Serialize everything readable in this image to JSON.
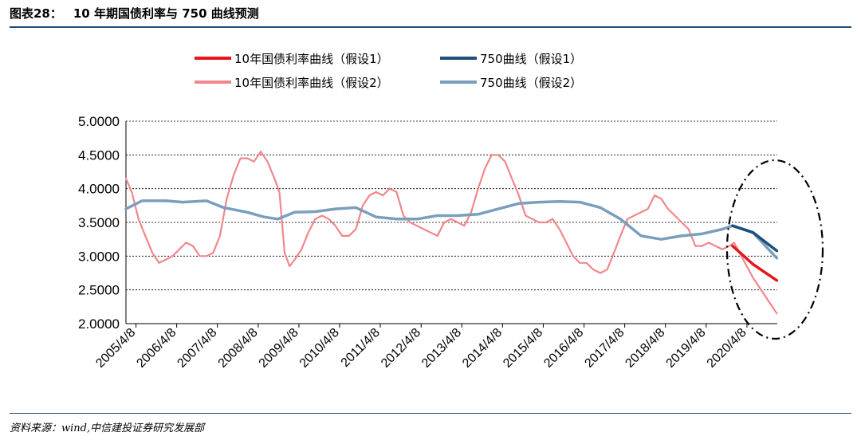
{
  "figure": {
    "label": "图表28：",
    "title": "10 年期国债利率与 750 曲线预测",
    "source": "资料来源：wind,中信建投证券研究发展部"
  },
  "colors": {
    "rule": "#1f4e79",
    "ellipse": "#000000",
    "grid": "#000000"
  },
  "chart_data": {
    "type": "line",
    "title": "",
    "xlabel": "",
    "ylabel": "",
    "ylim": [
      2.0,
      5.0
    ],
    "yticks": [
      "2.0000",
      "2.5000",
      "3.0000",
      "3.5000",
      "4.0000",
      "4.5000",
      "5.0000"
    ],
    "xticks": [
      "2005/4/8",
      "2006/4/8",
      "2007/4/8",
      "2008/4/8",
      "2009/4/8",
      "2010/4/8",
      "2011/4/8",
      "2012/4/8",
      "2013/4/8",
      "2014/4/8",
      "2015/4/8",
      "2016/4/8",
      "2017/4/8",
      "2018/4/8",
      "2019/4/8",
      "2020/4/8"
    ],
    "grid": "horizontal dashed",
    "legend": "top",
    "series": [
      {
        "name": "10年国债利率曲线（假设1）",
        "color": "#e8151b",
        "width": 3.5,
        "x": [
          "2019/12/1",
          "2020/6/1",
          "2021/1/1"
        ],
        "y": [
          3.15,
          2.88,
          2.64
        ]
      },
      {
        "name": "750曲线（假设1）",
        "color": "#1c4f7c",
        "width": 3.5,
        "x": [
          "2019/12/1",
          "2020/6/1",
          "2021/1/1"
        ],
        "y": [
          3.45,
          3.35,
          3.08
        ]
      },
      {
        "name": "10年国债利率曲线（假设2）",
        "color": "#f2868a",
        "width": 2.2,
        "x": [
          "2005/1/8",
          "2005/3/1",
          "2005/5/1",
          "2005/7/1",
          "2005/9/1",
          "2005/11/1",
          "2006/1/1",
          "2006/3/1",
          "2006/5/1",
          "2006/7/1",
          "2006/9/1",
          "2006/11/1",
          "2007/1/1",
          "2007/3/1",
          "2007/5/1",
          "2007/7/1",
          "2007/9/1",
          "2007/11/1",
          "2008/1/1",
          "2008/3/1",
          "2008/5/1",
          "2008/7/1",
          "2008/9/1",
          "2008/10/15",
          "2008/12/1",
          "2009/1/15",
          "2009/3/1",
          "2009/5/1",
          "2009/7/1",
          "2009/9/1",
          "2009/11/1",
          "2010/1/1",
          "2010/3/1",
          "2010/5/1",
          "2010/7/1",
          "2010/9/1",
          "2010/11/1",
          "2011/1/1",
          "2011/3/1",
          "2011/5/1",
          "2011/7/1",
          "2011/9/1",
          "2011/11/1",
          "2012/1/1",
          "2012/3/1",
          "2012/5/1",
          "2012/7/1",
          "2012/9/1",
          "2012/11/1",
          "2013/1/1",
          "2013/3/1",
          "2013/5/1",
          "2013/7/1",
          "2013/9/1",
          "2013/11/1",
          "2014/1/1",
          "2014/3/1",
          "2014/5/1",
          "2014/7/1",
          "2014/9/1",
          "2014/11/1",
          "2015/1/1",
          "2015/3/1",
          "2015/5/1",
          "2015/7/1",
          "2015/9/1",
          "2015/11/1",
          "2016/1/1",
          "2016/3/1",
          "2016/5/1",
          "2016/7/1",
          "2016/9/1",
          "2016/11/1",
          "2017/1/1",
          "2017/3/1",
          "2017/5/1",
          "2017/7/1",
          "2017/9/1",
          "2017/11/1",
          "2018/1/1",
          "2018/3/1",
          "2018/5/1",
          "2018/7/1",
          "2018/9/1",
          "2018/11/1",
          "2019/1/1",
          "2019/3/1",
          "2019/5/1",
          "2019/7/1",
          "2019/9/1",
          "2019/11/1",
          "2019/12/15",
          "2020/6/1",
          "2021/1/1"
        ],
        "y": [
          4.15,
          3.95,
          3.55,
          3.3,
          3.05,
          2.9,
          2.95,
          3.0,
          3.1,
          3.2,
          3.15,
          3.0,
          3.0,
          3.05,
          3.3,
          3.85,
          4.2,
          4.45,
          4.45,
          4.4,
          4.55,
          4.4,
          4.15,
          3.95,
          3.05,
          2.85,
          2.95,
          3.1,
          3.35,
          3.55,
          3.6,
          3.55,
          3.45,
          3.3,
          3.3,
          3.4,
          3.75,
          3.9,
          3.95,
          3.9,
          4.0,
          3.95,
          3.6,
          3.5,
          3.45,
          3.4,
          3.35,
          3.3,
          3.5,
          3.55,
          3.5,
          3.45,
          3.65,
          4.0,
          4.3,
          4.5,
          4.5,
          4.4,
          4.15,
          3.9,
          3.6,
          3.55,
          3.5,
          3.5,
          3.55,
          3.4,
          3.2,
          3.0,
          2.9,
          2.9,
          2.8,
          2.75,
          2.8,
          3.05,
          3.3,
          3.55,
          3.6,
          3.65,
          3.7,
          3.9,
          3.85,
          3.7,
          3.6,
          3.5,
          3.4,
          3.15,
          3.15,
          3.2,
          3.15,
          3.1,
          3.15,
          3.2,
          2.68,
          2.15
        ]
      },
      {
        "name": "750曲线（假设2）",
        "color": "#7a9fbd",
        "width": 3.5,
        "x": [
          "2005/1/8",
          "2005/6/1",
          "2006/1/1",
          "2006/6/1",
          "2007/1/1",
          "2007/6/1",
          "2008/1/1",
          "2008/6/1",
          "2008/10/1",
          "2009/3/1",
          "2009/9/1",
          "2010/3/1",
          "2010/9/1",
          "2011/3/1",
          "2011/9/1",
          "2012/3/1",
          "2012/9/1",
          "2013/3/1",
          "2013/9/1",
          "2014/3/1",
          "2014/9/1",
          "2015/3/1",
          "2015/9/1",
          "2016/3/1",
          "2016/9/1",
          "2017/3/1",
          "2017/9/1",
          "2018/3/1",
          "2018/9/1",
          "2019/3/1",
          "2019/9/1",
          "2019/12/1",
          "2020/6/1",
          "2021/1/1"
        ],
        "y": [
          3.7,
          3.82,
          3.82,
          3.8,
          3.82,
          3.72,
          3.65,
          3.58,
          3.55,
          3.65,
          3.66,
          3.7,
          3.72,
          3.58,
          3.55,
          3.55,
          3.6,
          3.6,
          3.62,
          3.7,
          3.78,
          3.8,
          3.81,
          3.8,
          3.72,
          3.55,
          3.3,
          3.25,
          3.3,
          3.33,
          3.4,
          3.45,
          3.35,
          2.97
        ]
      }
    ],
    "annotation": "dash-dot ellipse around forecast region"
  }
}
